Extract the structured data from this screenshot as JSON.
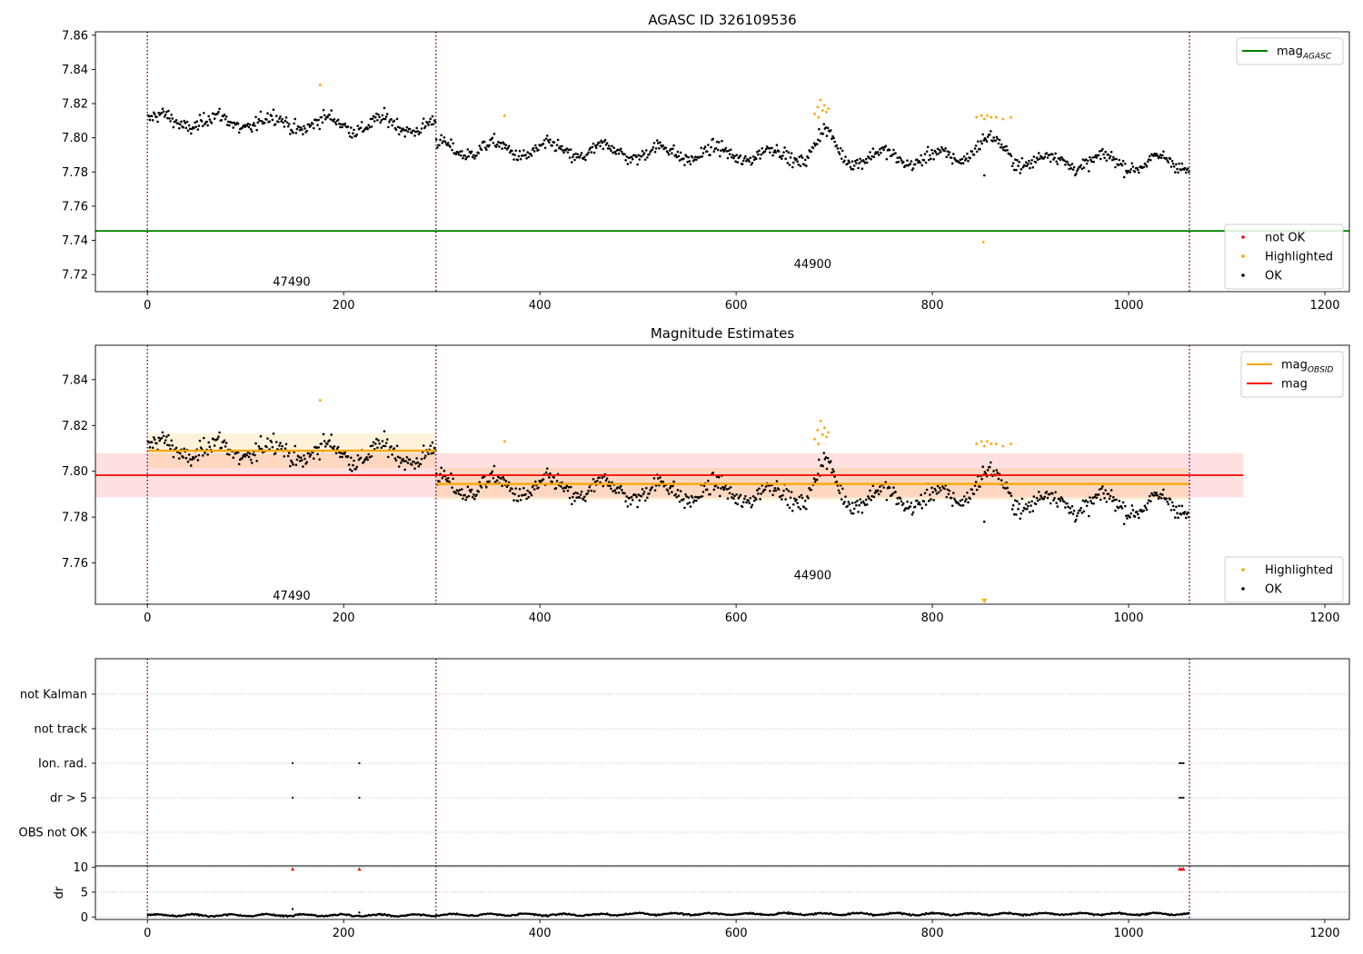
{
  "chart_data": [
    {
      "type": "scatter",
      "title": "AGASC ID 326109536",
      "xlim": [
        -53,
        1225
      ],
      "ylim": [
        7.71,
        7.862
      ],
      "xticks": [
        0,
        200,
        400,
        600,
        800,
        1000,
        1200
      ],
      "yticks": [
        7.72,
        7.74,
        7.76,
        7.78,
        7.8,
        7.82,
        7.84,
        7.86
      ],
      "ytick_labels": [
        "7.72",
        "7.74",
        "7.76",
        "7.78",
        "7.80",
        "7.82",
        "7.84",
        "7.86"
      ],
      "obsid_boundaries": [
        0,
        294,
        1062
      ],
      "obsid_labels": [
        {
          "text": "47490",
          "x": 147,
          "y": 7.7155
        },
        {
          "text": "44900",
          "x": 678,
          "y": 7.726
        }
      ],
      "hline": {
        "name": "mag_AGASC",
        "value": 7.7455,
        "color": "#008000"
      },
      "segments": [
        {
          "x0": 0,
          "x1": 294,
          "level": 7.81,
          "noise": 0.0055,
          "slope": -1e-05
        },
        {
          "x0": 294,
          "x1": 1062,
          "level": 7.794,
          "noise": 0.005,
          "slope": -1.2e-05
        }
      ],
      "bumps": [
        {
          "x": 690,
          "amp": 0.012,
          "width": 12
        },
        {
          "x": 855,
          "amp": 0.01,
          "width": 22
        }
      ],
      "highlighted": [
        [
          176,
          7.831
        ],
        [
          364,
          7.813
        ],
        [
          680,
          7.814
        ],
        [
          683,
          7.818
        ],
        [
          686,
          7.822
        ],
        [
          688,
          7.816
        ],
        [
          690,
          7.819
        ],
        [
          692,
          7.815
        ],
        [
          694,
          7.817
        ],
        [
          684,
          7.812
        ],
        [
          845,
          7.812
        ],
        [
          850,
          7.813
        ],
        [
          853,
          7.811
        ],
        [
          856,
          7.813
        ],
        [
          860,
          7.812
        ],
        [
          865,
          7.812
        ],
        [
          872,
          7.811
        ],
        [
          880,
          7.812
        ],
        [
          852,
          7.739
        ]
      ],
      "outliers": [
        [
          853,
          7.778
        ]
      ],
      "legend_top": {
        "position": "upper right",
        "entries": [
          {
            "label": "mag",
            "sub": "AGASC",
            "color": "#008000"
          }
        ]
      },
      "legend_bottom": {
        "position": "lower right",
        "entries": [
          {
            "label": "not OK",
            "color": "#ff0000"
          },
          {
            "label": "Highlighted",
            "color": "#ffa500"
          },
          {
            "label": "OK",
            "color": "#000000"
          }
        ]
      }
    },
    {
      "type": "scatter",
      "title": "Magnitude Estimates",
      "xlim": [
        -53,
        1225
      ],
      "ylim": [
        7.742,
        7.855
      ],
      "xticks": [
        0,
        200,
        400,
        600,
        800,
        1000,
        1200
      ],
      "yticks": [
        7.76,
        7.78,
        7.8,
        7.82,
        7.84
      ],
      "ytick_labels": [
        "7.76",
        "7.78",
        "7.80",
        "7.82",
        "7.84"
      ],
      "obsid_boundaries": [
        0,
        294,
        1062
      ],
      "obsid_labels": [
        {
          "text": "47490",
          "x": 147,
          "y": 7.7455
        },
        {
          "text": "44900",
          "x": 678,
          "y": 7.7545
        }
      ],
      "overall_mag": {
        "name": "mag",
        "value": 7.7983,
        "band": [
          7.7886,
          7.808
        ],
        "x0": -53,
        "x1": 1117,
        "color": "#ff0000"
      },
      "obsid_mags": [
        {
          "x0": 0,
          "x1": 294,
          "value": 7.809,
          "band": [
            7.8015,
            7.8165
          ]
        },
        {
          "x0": 294,
          "x1": 1062,
          "value": 7.7945,
          "band": [
            7.7875,
            7.8015
          ]
        }
      ],
      "marker_below": {
        "x": 853,
        "y": 7.7425,
        "color": "#ffa500"
      },
      "legend_top": {
        "position": "upper right",
        "entries": [
          {
            "label": "mag",
            "sub": "OBSID",
            "color": "#ffa500"
          },
          {
            "label": "mag",
            "sub": "",
            "color": "#ff0000"
          }
        ]
      },
      "legend_bottom": {
        "position": "lower right",
        "entries": [
          {
            "label": "Highlighted",
            "color": "#ffa500"
          },
          {
            "label": "OK",
            "color": "#000000"
          }
        ]
      }
    },
    {
      "type": "scatter",
      "title": "",
      "xlim": [
        -53,
        1225
      ],
      "categories": [
        "not Kalman",
        "not track",
        "Ion. rad.",
        "dr > 5",
        "OBS not OK"
      ],
      "flags": [
        {
          "category": "Ion. rad.",
          "x": [
            148,
            216,
            1052,
            1054,
            1056
          ]
        },
        {
          "category": "dr > 5",
          "x": [
            148,
            216,
            1052,
            1054,
            1056
          ]
        }
      ],
      "obsid_boundaries": [
        0,
        294,
        1062
      ]
    },
    {
      "type": "scatter",
      "title": "",
      "ylabel": "dr",
      "xlim": [
        -53,
        1225
      ],
      "ylim": [
        -0.5,
        10.3
      ],
      "yticks": [
        0,
        5,
        10
      ],
      "ytick_labels": [
        "0",
        "5",
        "10"
      ],
      "xticks": [
        0,
        200,
        400,
        600,
        800,
        1000,
        1200
      ],
      "capped_markers": [
        [
          148,
          9.7
        ],
        [
          216,
          9.7
        ],
        [
          1052,
          9.7
        ],
        [
          1054,
          9.7
        ],
        [
          1056,
          9.7
        ]
      ],
      "spikes": [
        [
          148,
          1.6
        ],
        [
          216,
          0.9
        ]
      ],
      "obsid_boundaries": [
        0,
        294,
        1062
      ]
    }
  ]
}
